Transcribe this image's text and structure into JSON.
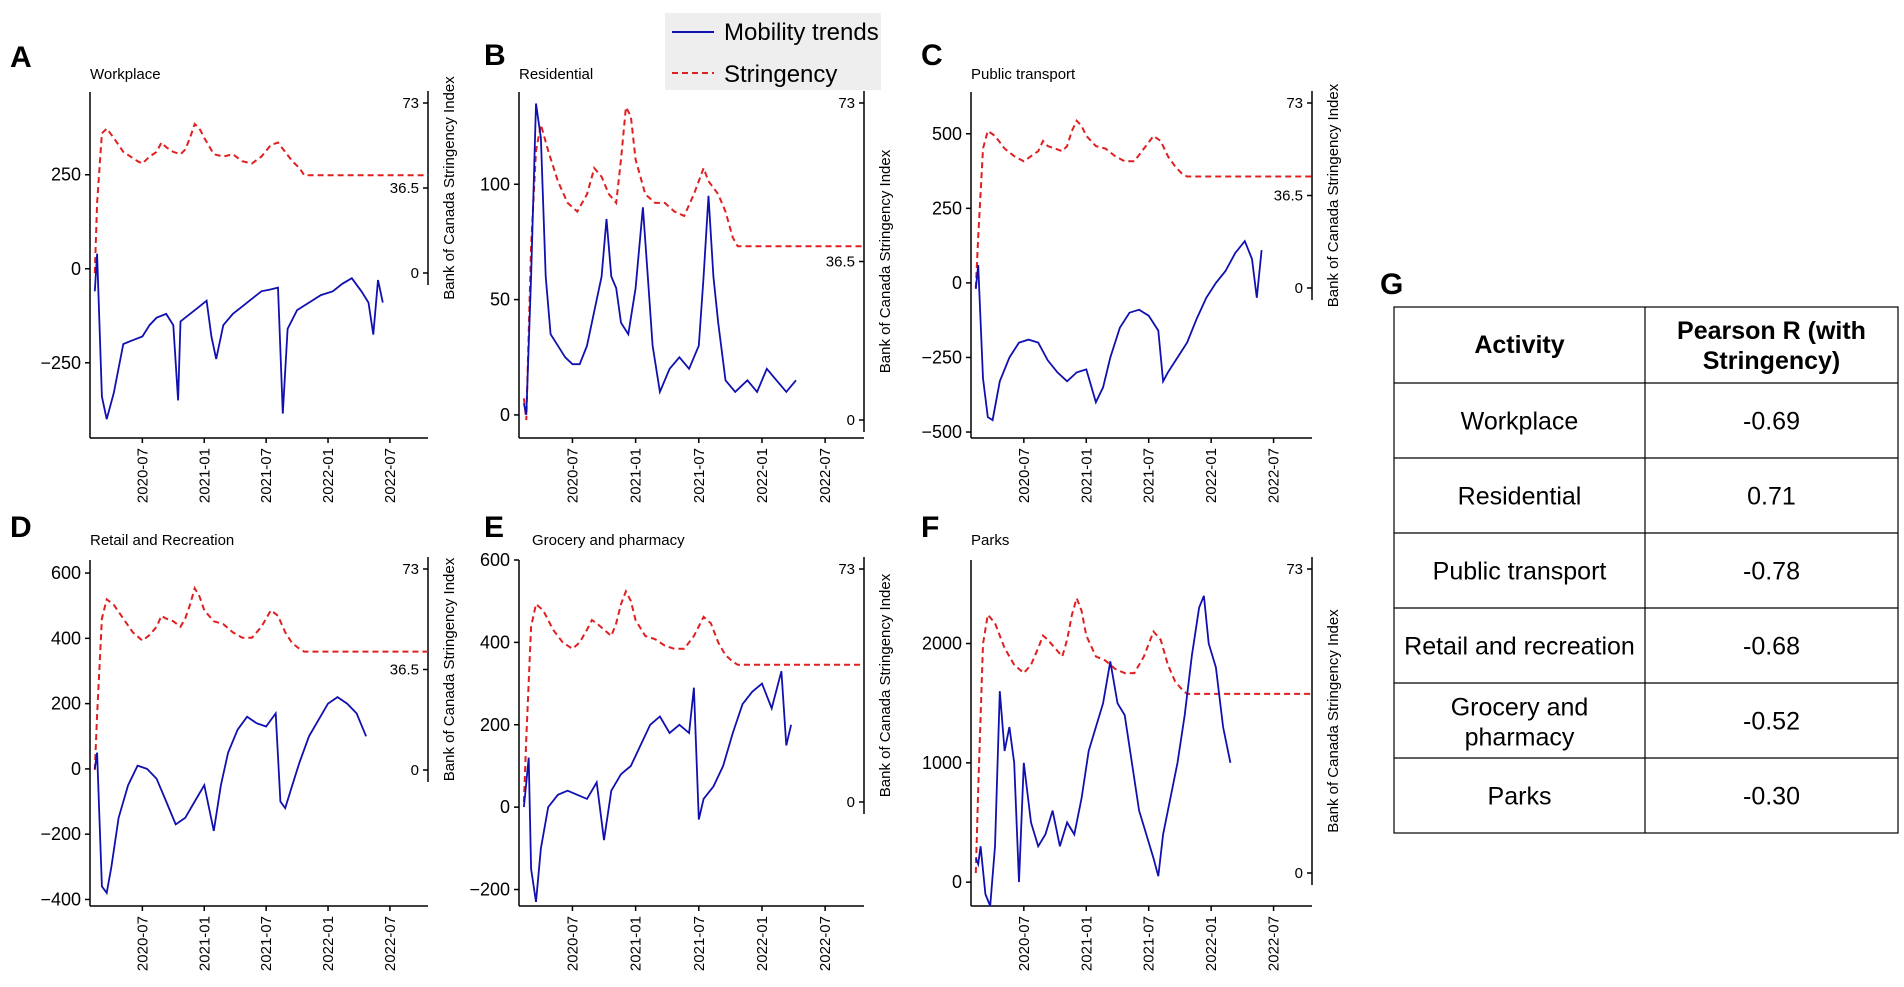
{
  "legend": {
    "mobility": "Mobility trends",
    "stringency": "Stringency"
  },
  "colors": {
    "mobility": "#1010b0",
    "stringency": "#e02020"
  },
  "right_axis_label": "Bank of Canada Stringency Index",
  "chart_data": [
    {
      "letter": "A",
      "title": "Workplace",
      "type": "line",
      "xlabel": "",
      "ylabel": "",
      "x_ticks": [
        "2020-07",
        "2021-01",
        "2021-07",
        "2022-01",
        "2022-07"
      ],
      "y_ticks": [
        -250,
        0,
        250
      ],
      "ylim": [
        -450,
        470
      ],
      "right_ticks": [
        "73",
        "36.5",
        "0"
      ],
      "right_ylim": [
        0,
        73
      ],
      "mobility": [
        [
          -45,
          -60
        ],
        [
          -40,
          40
        ],
        [
          -35,
          -340
        ],
        [
          -30,
          -400
        ],
        [
          -25,
          -360
        ],
        [
          -20,
          -330
        ],
        [
          -15,
          -260
        ],
        [
          -10,
          -200
        ],
        [
          -5,
          -180
        ],
        [
          0,
          -200
        ],
        [
          5,
          -190
        ],
        [
          10,
          -150
        ],
        [
          15,
          -130
        ],
        [
          20,
          -140
        ],
        [
          25,
          -120
        ],
        [
          30,
          -130
        ],
        [
          35,
          -110
        ],
        [
          40,
          -150
        ],
        [
          43,
          -350
        ],
        [
          45,
          -140
        ],
        [
          50,
          -120
        ],
        [
          55,
          -100
        ],
        [
          60,
          -120
        ],
        [
          62,
          -95
        ],
        [
          65,
          -80
        ],
        [
          70,
          -140
        ],
        [
          75,
          -240
        ],
        [
          80,
          -160
        ],
        [
          85,
          -130
        ],
        [
          90,
          -110
        ],
        [
          95,
          -80
        ],
        [
          100,
          -60
        ],
        [
          105,
          -80
        ],
        [
          110,
          -50
        ],
        [
          115,
          -40
        ],
        [
          118,
          -60
        ],
        [
          120,
          -380
        ],
        [
          122,
          -160
        ],
        [
          125,
          -100
        ],
        [
          130,
          -80
        ],
        [
          135,
          -70
        ],
        [
          140,
          -60
        ],
        [
          145,
          -50
        ],
        [
          150,
          -30
        ],
        [
          155,
          -60
        ],
        [
          160,
          -80
        ],
        [
          163,
          -180
        ],
        [
          165,
          -40
        ],
        [
          168,
          -80
        ]
      ],
      "stringency": [
        [
          -45,
          0
        ],
        [
          -42,
          30
        ],
        [
          -38,
          60
        ],
        [
          -33,
          62
        ],
        [
          -28,
          60
        ],
        [
          -22,
          54
        ],
        [
          -17,
          50
        ],
        [
          -12,
          49
        ],
        [
          -7,
          46
        ],
        [
          -2,
          47
        ],
        [
          3,
          50
        ],
        [
          8,
          51
        ],
        [
          12,
          54
        ],
        [
          17,
          52
        ],
        [
          22,
          49
        ],
        [
          27,
          51
        ],
        [
          32,
          55
        ],
        [
          35,
          63
        ],
        [
          40,
          60
        ],
        [
          45,
          55
        ],
        [
          50,
          50
        ],
        [
          55,
          48
        ],
        [
          60,
          49
        ],
        [
          64,
          56
        ],
        [
          68,
          56
        ],
        [
          72,
          52
        ],
        [
          76,
          45
        ],
        [
          80,
          40
        ],
        [
          85,
          40
        ],
        [
          90,
          40
        ],
        [
          95,
          40
        ],
        [
          100,
          40
        ],
        [
          105,
          40
        ],
        [
          110,
          40
        ],
        [
          115,
          40
        ],
        [
          120,
          40
        ],
        [
          125,
          40
        ],
        [
          130,
          40
        ],
        [
          135,
          40
        ],
        [
          140,
          40
        ],
        [
          145,
          40
        ],
        [
          150,
          40
        ],
        [
          155,
          40
        ],
        [
          160,
          40
        ],
        [
          165,
          40
        ],
        [
          168,
          40
        ]
      ],
      "_note": "stringency uses right axis"
    },
    {
      "letter": "B",
      "title": "Residential",
      "type": "line",
      "xlabel": "",
      "ylabel": "",
      "x_ticks": [
        "2020-07",
        "2021-01",
        "2021-07",
        "2022-01",
        "2022-07"
      ],
      "y_ticks": [
        0,
        50,
        100
      ],
      "ylim": [
        -10,
        140
      ],
      "right_ticks": [
        "73",
        "36.5",
        "0"
      ],
      "right_ylim": [
        0,
        73
      ]
    },
    {
      "letter": "C",
      "title": "Public transport",
      "type": "line",
      "xlabel": "",
      "ylabel": "",
      "x_ticks": [
        "2020-07",
        "2021-01",
        "2021-07",
        "2022-01",
        "2022-07"
      ],
      "y_ticks": [
        -500,
        -250,
        0,
        250,
        500
      ],
      "ylim": [
        -520,
        640
      ],
      "right_ticks": [
        "73",
        "36.5",
        "0"
      ],
      "right_ylim": [
        0,
        73
      ]
    },
    {
      "letter": "D",
      "title": "Retail and Recreation",
      "type": "line",
      "xlabel": "",
      "ylabel": "",
      "x_ticks": [
        "2020-07",
        "2021-01",
        "2021-07",
        "2022-01",
        "2022-07"
      ],
      "y_ticks": [
        -400,
        -200,
        0,
        200,
        400,
        600
      ],
      "ylim": [
        -420,
        640
      ],
      "right_ticks": [
        "73",
        "36.5",
        "0"
      ],
      "right_ylim": [
        0,
        73
      ]
    },
    {
      "letter": "E",
      "title": "Grocery and pharmacy",
      "type": "line",
      "xlabel": "",
      "ylabel": "",
      "x_ticks": [
        "2020-07",
        "2021-01",
        "2021-07",
        "2022-01",
        "2022-07"
      ],
      "y_ticks": [
        -200,
        0,
        200,
        400,
        600
      ],
      "ylim": [
        -240,
        600
      ],
      "right_ticks": [
        "73",
        "0"
      ],
      "right_ylim": [
        0,
        73
      ]
    },
    {
      "letter": "F",
      "title": "Parks",
      "type": "line",
      "xlabel": "",
      "ylabel": "",
      "x_ticks": [
        "2020-07",
        "2021-01",
        "2021-07",
        "2022-01",
        "2022-07"
      ],
      "y_ticks": [
        0,
        1000,
        2000
      ],
      "ylim": [
        -200,
        2700
      ],
      "right_ticks": [
        "73",
        "0"
      ],
      "right_ylim": [
        0,
        73
      ]
    },
    {
      "letter": "G",
      "type": "table",
      "columns": [
        "Activity",
        "Pearson R (with Stringency)"
      ],
      "rows": [
        [
          "Workplace",
          "-0.69"
        ],
        [
          "Residential",
          "0.71"
        ],
        [
          "Public transport",
          "-0.78"
        ],
        [
          "Retail and recreation",
          "-0.68"
        ],
        [
          "Grocery and pharmacy",
          "-0.52"
        ],
        [
          "Parks",
          "-0.30"
        ]
      ]
    }
  ]
}
